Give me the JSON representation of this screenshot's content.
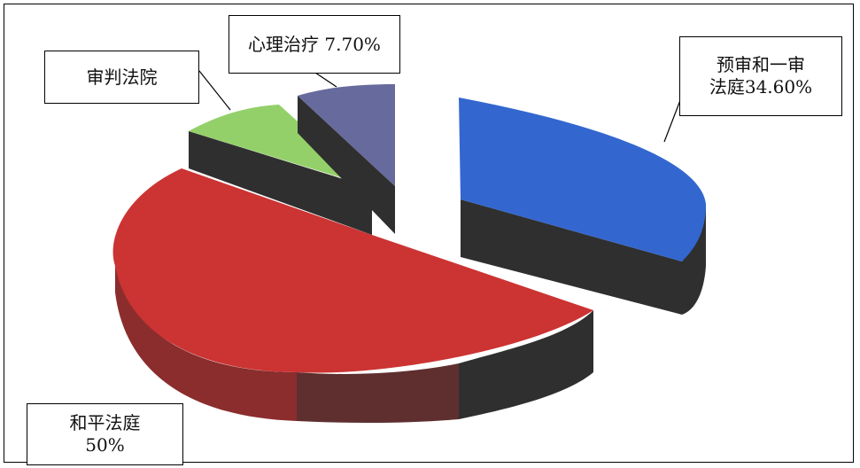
{
  "chart_data": {
    "type": "pie",
    "style": "3d-exploded",
    "slices": [
      {
        "name": "预审和一审法庭",
        "value": 34.6,
        "label_lines": [
          "预审和一审",
          "法庭34.60%"
        ],
        "color": "#3367cf"
      },
      {
        "name": "和平法庭",
        "value": 50,
        "label_lines": [
          "和平法庭",
          "50%"
        ],
        "color": "#cc3333"
      },
      {
        "name": "审判法院",
        "value": 7.7,
        "label_lines": [
          "审判法院"
        ],
        "color": "#94d06a"
      },
      {
        "name": "心理治疗",
        "value": 7.7,
        "label_lines": [
          "心理治疗 7.70%"
        ],
        "color": "#676a9c"
      }
    ],
    "colors": {
      "side_dark": "#2f2f2f",
      "red_side_front": "#8b2d2d",
      "red_side_mid": "#5f2f2f"
    }
  }
}
